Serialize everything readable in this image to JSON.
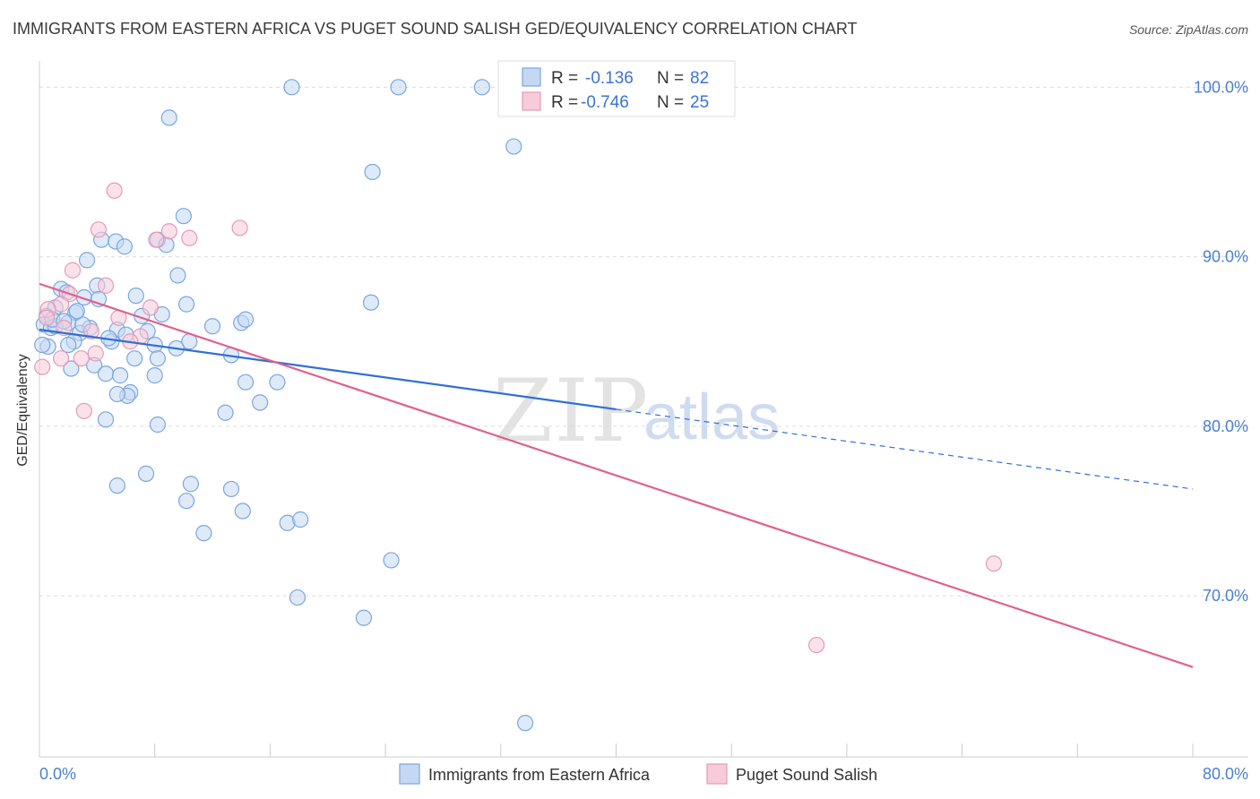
{
  "chart_data": {
    "type": "scatter",
    "title": "IMMIGRANTS FROM EASTERN AFRICA VS PUGET SOUND SALISH GED/EQUIVALENCY CORRELATION CHART",
    "source": "Source: ZipAtlas.com",
    "xlabel": "",
    "ylabel": "GED/Equivalency",
    "xlim": [
      0,
      80
    ],
    "ylim": [
      60.5,
      102.5
    ],
    "x_ticks": [
      {
        "value": 0,
        "label": "0.0%"
      },
      {
        "value": 80,
        "label": "80.0%"
      }
    ],
    "y_ticks": [
      {
        "value": 100,
        "label": "100.0%"
      },
      {
        "value": 90,
        "label": "90.0%"
      },
      {
        "value": 80,
        "label": "80.0%"
      },
      {
        "value": 70,
        "label": "70.0%"
      }
    ],
    "grid": "horizontal dashed",
    "watermark": {
      "zip": "ZIP",
      "atlas": "atlas"
    },
    "legend_stats": [
      {
        "r_label": "R =",
        "r_value": "-0.136",
        "n_label": "N =",
        "n_value": "82"
      },
      {
        "r_label": "R =",
        "r_value": "-0.746",
        "n_label": "N =",
        "n_value": "25"
      }
    ],
    "series": [
      {
        "name": "Immigrants from Eastern Africa",
        "color": "#7aa6e0",
        "fill": "#c5d8f3",
        "trend": {
          "x0": 0,
          "y0": 85.7,
          "x1": 40,
          "y1": 81.0,
          "dashed_to_x": 80,
          "dashed_y1": 76.3,
          "color": "#2f6fd6"
        },
        "points": [
          [
            17.5,
            100
          ],
          [
            24.9,
            100
          ],
          [
            30.7,
            100
          ],
          [
            9.0,
            98.2
          ],
          [
            32.9,
            96.5
          ],
          [
            23.1,
            95.0
          ],
          [
            10.0,
            92.4
          ],
          [
            4.3,
            91.0
          ],
          [
            5.3,
            90.9
          ],
          [
            5.9,
            90.6
          ],
          [
            8.2,
            91.0
          ],
          [
            8.8,
            90.7
          ],
          [
            3.3,
            89.8
          ],
          [
            9.6,
            88.9
          ],
          [
            4.0,
            88.3
          ],
          [
            1.5,
            88.1
          ],
          [
            1.9,
            87.9
          ],
          [
            3.1,
            87.6
          ],
          [
            6.7,
            87.7
          ],
          [
            4.1,
            87.5
          ],
          [
            10.2,
            87.2
          ],
          [
            1.1,
            87.0
          ],
          [
            2.5,
            86.7
          ],
          [
            7.1,
            86.5
          ],
          [
            8.5,
            86.6
          ],
          [
            0.5,
            86.5
          ],
          [
            2.0,
            86.1
          ],
          [
            14.0,
            86.1
          ],
          [
            14.3,
            86.3
          ],
          [
            23.0,
            87.3
          ],
          [
            0.3,
            86.0
          ],
          [
            0.8,
            85.8
          ],
          [
            1.1,
            85.9
          ],
          [
            3.5,
            85.8
          ],
          [
            2.8,
            85.5
          ],
          [
            5.4,
            85.7
          ],
          [
            7.5,
            85.6
          ],
          [
            2.4,
            85.0
          ],
          [
            2.0,
            84.8
          ],
          [
            5.0,
            85.0
          ],
          [
            8.0,
            84.8
          ],
          [
            10.4,
            85.0
          ],
          [
            0.6,
            84.7
          ],
          [
            13.3,
            84.2
          ],
          [
            6.6,
            84.0
          ],
          [
            8.2,
            84.0
          ],
          [
            2.2,
            83.4
          ],
          [
            3.8,
            83.6
          ],
          [
            4.6,
            83.1
          ],
          [
            5.6,
            83.0
          ],
          [
            8.0,
            83.0
          ],
          [
            14.3,
            82.6
          ],
          [
            16.5,
            82.6
          ],
          [
            6.3,
            82.0
          ],
          [
            6.1,
            81.8
          ],
          [
            5.4,
            81.9
          ],
          [
            15.3,
            81.4
          ],
          [
            12.9,
            80.8
          ],
          [
            4.6,
            80.4
          ],
          [
            8.2,
            80.1
          ],
          [
            7.4,
            77.2
          ],
          [
            5.4,
            76.5
          ],
          [
            10.5,
            76.6
          ],
          [
            13.3,
            76.3
          ],
          [
            10.2,
            75.6
          ],
          [
            14.1,
            75.0
          ],
          [
            17.2,
            74.3
          ],
          [
            18.1,
            74.5
          ],
          [
            11.4,
            73.7
          ],
          [
            24.4,
            72.1
          ],
          [
            17.9,
            69.9
          ],
          [
            22.5,
            68.7
          ],
          [
            33.7,
            62.5
          ],
          [
            0.2,
            84.8
          ],
          [
            0.9,
            86.3
          ],
          [
            1.7,
            86.2
          ],
          [
            3.0,
            86.0
          ],
          [
            6.0,
            85.4
          ],
          [
            9.5,
            84.6
          ],
          [
            2.6,
            86.8
          ],
          [
            4.8,
            85.2
          ],
          [
            12.0,
            85.9
          ]
        ]
      },
      {
        "name": "Puget Sound Salish",
        "color": "#e59ab6",
        "fill": "#f7cbd9",
        "trend": {
          "x0": 0,
          "y0": 88.4,
          "x1": 80,
          "y1": 65.8,
          "color": "#e0608c"
        },
        "points": [
          [
            5.2,
            93.9
          ],
          [
            4.1,
            91.6
          ],
          [
            13.9,
            91.7
          ],
          [
            9.0,
            91.5
          ],
          [
            10.4,
            91.1
          ],
          [
            8.1,
            91.0
          ],
          [
            2.3,
            89.2
          ],
          [
            4.6,
            88.3
          ],
          [
            2.1,
            87.8
          ],
          [
            1.5,
            87.2
          ],
          [
            0.6,
            86.9
          ],
          [
            7.7,
            87.0
          ],
          [
            5.5,
            86.4
          ],
          [
            1.7,
            85.8
          ],
          [
            7.0,
            85.3
          ],
          [
            6.3,
            85.0
          ],
          [
            3.9,
            84.3
          ],
          [
            1.5,
            84.0
          ],
          [
            2.9,
            84.0
          ],
          [
            0.2,
            83.5
          ],
          [
            3.1,
            80.9
          ],
          [
            66.2,
            71.9
          ],
          [
            53.9,
            67.1
          ],
          [
            0.5,
            86.4
          ],
          [
            3.6,
            85.6
          ]
        ]
      }
    ]
  }
}
